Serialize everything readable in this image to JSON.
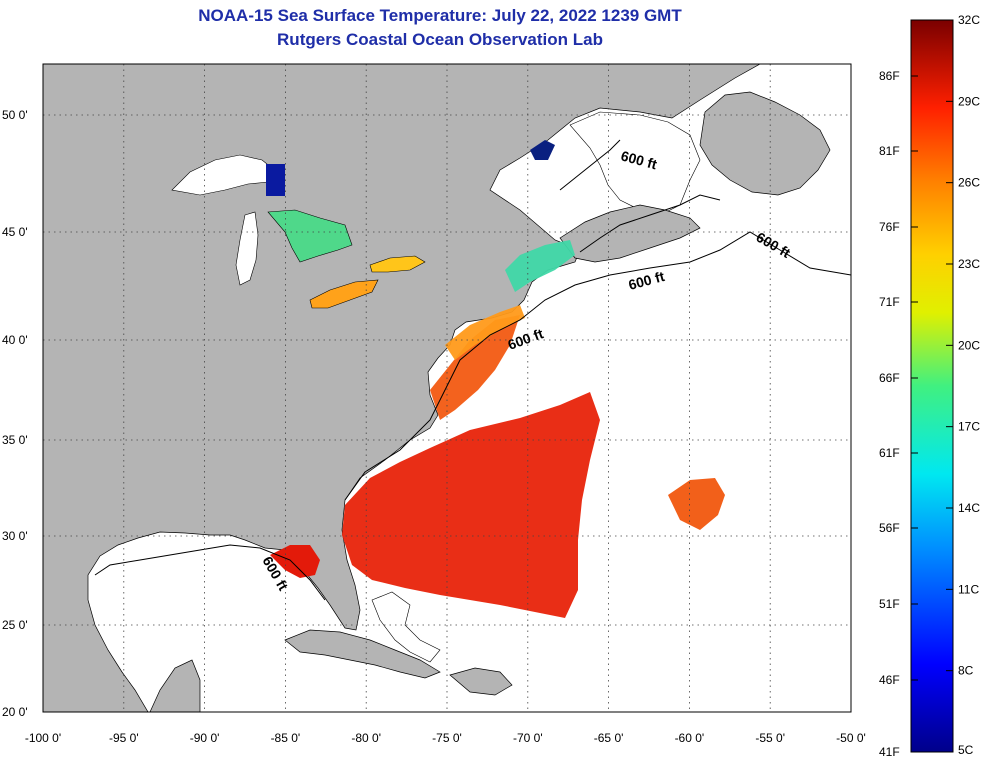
{
  "title": "NOAA-15 Sea Surface Temperature:  July 22, 2022 1239 GMT",
  "subtitle": "Rutgers Coastal Ocean Observation Lab",
  "map": {
    "lon_ticks": [
      "-100 0'",
      "-95 0'",
      "-90 0'",
      "-85 0'",
      "-80 0'",
      "-75 0'",
      "-70 0'",
      "-65 0'",
      "-60 0'",
      "-55 0'",
      "-50 0'"
    ],
    "lat_ticks": [
      "20 0'",
      "25 0'",
      "30 0'",
      "35 0'",
      "40 0'",
      "45 0'",
      "50 0'"
    ],
    "lon_range": [
      -100,
      -50
    ],
    "lat_range": [
      20,
      52
    ],
    "contour_labels": [
      "600 ft",
      "600 ft",
      "600 ft",
      "600 ft",
      "600 ft"
    ],
    "land_color": "#b4b4b4",
    "nodata_color": "#ffffff"
  },
  "colorbar": {
    "celsius_labels": [
      "32C",
      "29C",
      "26C",
      "23C",
      "20C",
      "17C",
      "14C",
      "11C",
      "8C",
      "5C"
    ],
    "fahrenheit_labels": [
      "86F",
      "81F",
      "76F",
      "71F",
      "66F",
      "61F",
      "56F",
      "51F",
      "46F",
      "41F"
    ],
    "range_c": [
      5,
      32
    ]
  }
}
